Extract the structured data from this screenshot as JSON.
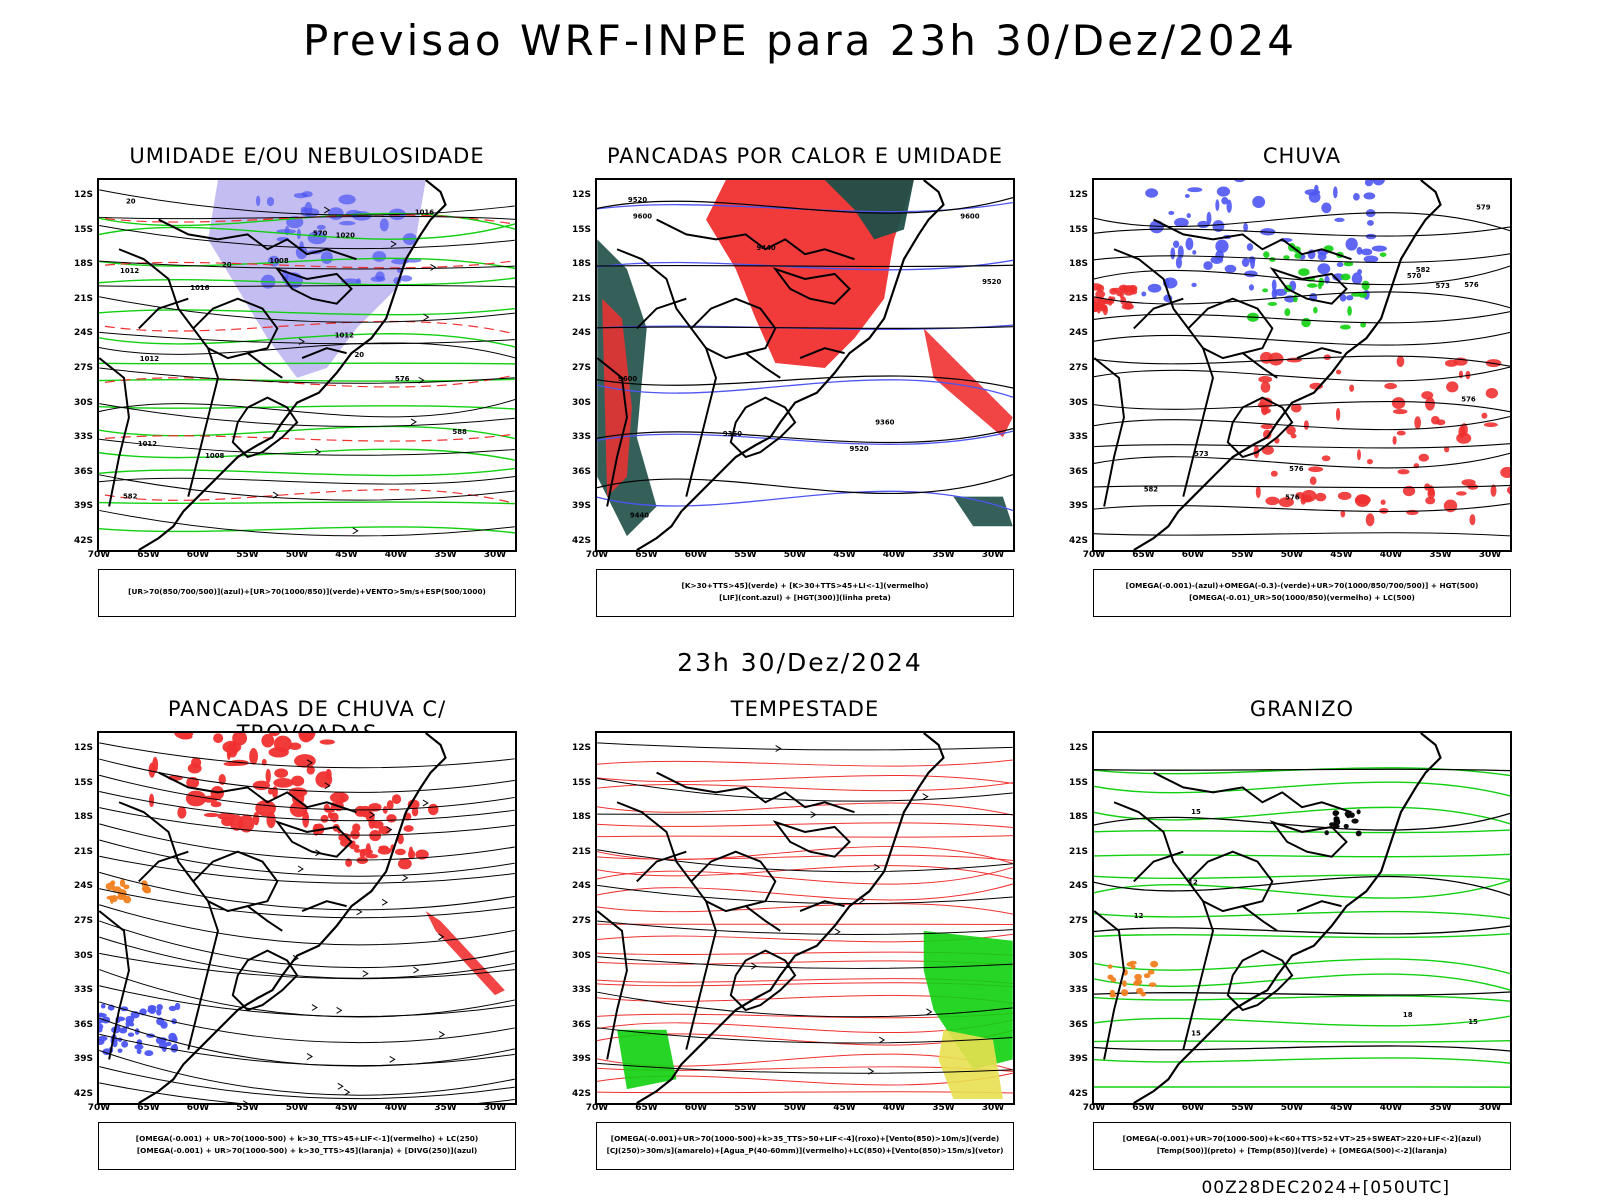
{
  "title": "Previsao WRF-INPE  para 23h 30/Dez/2024",
  "middle_title": "23h 30/Dez/2024",
  "footer": "00Z28DEC2024+[050UTC]",
  "axes": {
    "y_ticks": [
      "12S",
      "15S",
      "18S",
      "21S",
      "24S",
      "27S",
      "30S",
      "33S",
      "36S",
      "39S",
      "42S"
    ],
    "x_ticks": [
      "70W",
      "65W",
      "60W",
      "55W",
      "50W",
      "45W",
      "40W",
      "35W",
      "30W"
    ]
  },
  "colors": {
    "blue": "#4c55f2",
    "green": "#10d010",
    "red": "#f03030",
    "teal": "#1f4f48",
    "lilac": "#b9b2f0",
    "yellow": "#e8e050",
    "orange": "#f08020",
    "purple": "#a020c0"
  },
  "panels": [
    {
      "title": "UMIDADE E/OU NEBULOSIDADE",
      "contours": [
        "1012",
        "1008",
        "1012",
        "1008",
        "1016",
        "1012",
        "1016",
        "1012",
        "1020",
        "570",
        "576",
        "582",
        "588",
        "20",
        "20",
        "20"
      ],
      "legend": [
        "[UR>70(850/700/500)](azul)+[UR>70(1000/850)](verde)+VENTO>5m/s+ESP(500/1000)"
      ]
    },
    {
      "title": "PANCADAS POR CALOR E UMIDADE",
      "contours": [
        "9600",
        "9520",
        "9600",
        "9600",
        "9520",
        "9520",
        "9440",
        "9360",
        "9440",
        "9360"
      ],
      "legend": [
        "[K>30+TTS>45](verde) + [K>30+TTS>45+LI<-1](vermelho)",
        "[LIF](cont.azul) + [HGT(300)](linha preta)"
      ]
    },
    {
      "title": "CHUVA",
      "contours": [
        "582",
        "582",
        "576",
        "576",
        "570",
        "573",
        "576",
        "579",
        "576",
        "573"
      ],
      "legend": [
        "[OMEGA(-0.001)-(azul)+OMEGA(-0.3)-(verde)+UR>70(1000/850/700/500)] + HGT(500)",
        "[OMEGA(-0.01)_UR>50(1000/850)(vermelho) + LC(500)"
      ]
    },
    {
      "title": "PANCADAS DE CHUVA C/ TROVOADAS",
      "contours": [],
      "legend": [
        "[OMEGA(-0.001) + UR>70(1000-500) + k>30_TTS>45+LIF<-1](vermelho) + LC(250)",
        "[OMEGA(-0.001) + UR>70(1000-500) + k>30_TTS>45](laranja) + [DIVG(250)](azul)"
      ]
    },
    {
      "title": "TEMPESTADE",
      "contours": [],
      "legend": [
        "[OMEGA(-0.001)+UR>70(1000-500)+k>35_TTS>50+LIF<-4](roxo)+[Vento(850)>10m/s](verde)",
        "[CJ(250)>30m/s](amarelo)+[Agua_P(40-60mm)](vermelho)+LC(850)+[Vento(850)>15m/s](vetor)"
      ]
    },
    {
      "title": "GRANIZO",
      "contours": [
        "12",
        "15",
        "18",
        "12",
        "15",
        "15"
      ],
      "legend": [
        "[OMEGA(-0.001)+UR>70(1000-500)+k<60+TTS>52+VT>25+SWEAT>220+LIF<-2](azul)",
        "[Temp(500)](preto) + [Temp(850)](verde) + [OMEGA(500)<-2](laranja)"
      ]
    }
  ]
}
